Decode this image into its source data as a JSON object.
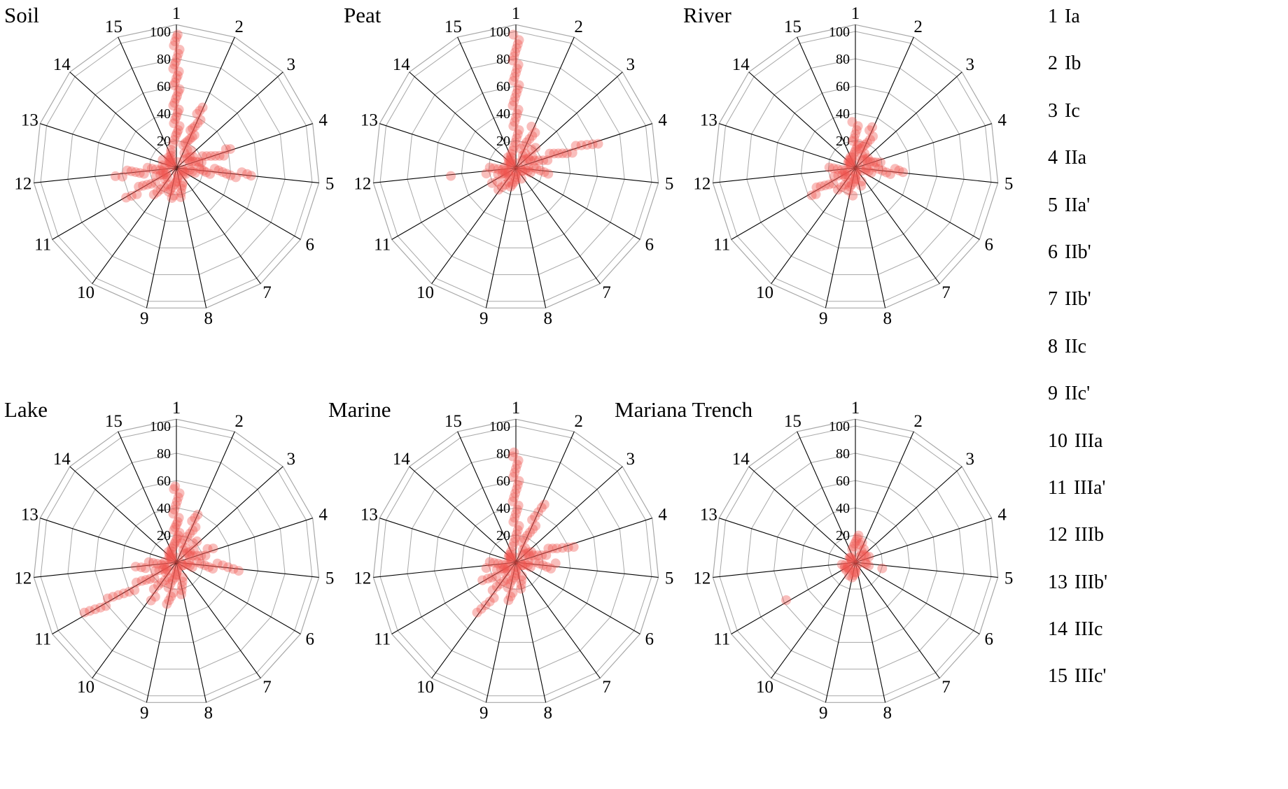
{
  "colors": {
    "point": "#ee544e",
    "spoke": "#000000",
    "ring": "#a8a8a8"
  },
  "legend": {
    "items": [
      {
        "num": "1",
        "label": "Ia"
      },
      {
        "num": "2",
        "label": "Ib"
      },
      {
        "num": "3",
        "label": "Ic"
      },
      {
        "num": "4",
        "label": "IIa"
      },
      {
        "num": "5",
        "label": "IIa'"
      },
      {
        "num": "6",
        "label": "IIb'"
      },
      {
        "num": "7",
        "label": "IIb'"
      },
      {
        "num": "8",
        "label": "IIc"
      },
      {
        "num": "9",
        "label": "IIc'"
      },
      {
        "num": "10",
        "label": "IIIa"
      },
      {
        "num": "11",
        "label": "IIIa'"
      },
      {
        "num": "12",
        "label": "IIIb"
      },
      {
        "num": "13",
        "label": "IIIb'"
      },
      {
        "num": "14",
        "label": "IIIc"
      },
      {
        "num": "15",
        "label": "IIIc'"
      }
    ]
  },
  "chart_data": [
    {
      "type": "scatter",
      "projection": "polar",
      "title": "Soil",
      "axes": [
        "1",
        "2",
        "3",
        "4",
        "5",
        "6",
        "7",
        "8",
        "9",
        "10",
        "11",
        "12",
        "13",
        "14",
        "15"
      ],
      "r_ticks": [
        20,
        40,
        60,
        80,
        100
      ],
      "r_max": 100,
      "points_by_axis": {
        "1": [
          20,
          23,
          26,
          28,
          30,
          33,
          35,
          38,
          40,
          43,
          45,
          48,
          50,
          53,
          55,
          58,
          60,
          63,
          65,
          68,
          70,
          73,
          75,
          78,
          80,
          83,
          86,
          89,
          92,
          95,
          98,
          100
        ],
        "2": [
          10,
          13,
          15,
          17,
          19,
          21,
          23,
          25,
          27,
          29,
          31,
          34,
          37,
          40,
          43,
          46
        ],
        "3": [
          7,
          9,
          11,
          13,
          15
        ],
        "4": [
          8,
          10,
          12,
          14,
          16,
          18,
          20,
          23,
          26,
          29,
          32,
          35,
          38,
          41
        ],
        "5": [
          10,
          12,
          14,
          16,
          18,
          20,
          22,
          25,
          28,
          31,
          34,
          37,
          40,
          44,
          48,
          52,
          55
        ],
        "6": [
          5,
          7,
          9
        ],
        "7": [
          4,
          6,
          8
        ],
        "8": [
          8,
          10,
          12,
          14,
          16,
          18,
          21,
          24
        ],
        "9": [
          8,
          10,
          12,
          14,
          16,
          18,
          20
        ],
        "10": [
          8,
          10,
          12,
          15,
          18,
          21,
          24
        ],
        "11": [
          8,
          10,
          12,
          15,
          18,
          21,
          24,
          27,
          30,
          34,
          38,
          42
        ],
        "12": [
          8,
          10,
          12,
          15,
          18,
          21,
          24,
          27,
          30,
          33,
          36,
          40,
          45
        ],
        "13": [
          5,
          7,
          9,
          11
        ],
        "14": [
          5,
          7,
          9,
          11,
          13
        ],
        "15": [
          6,
          8,
          10,
          12,
          14,
          16
        ]
      }
    },
    {
      "type": "scatter",
      "projection": "polar",
      "title": "Peat",
      "axes": [
        "1",
        "2",
        "3",
        "4",
        "5",
        "6",
        "7",
        "8",
        "9",
        "10",
        "11",
        "12",
        "13",
        "14",
        "15"
      ],
      "r_ticks": [
        20,
        40,
        60,
        80,
        100
      ],
      "r_max": 100,
      "points_by_axis": {
        "1": [
          15,
          18,
          21,
          24,
          27,
          30,
          33,
          36,
          39,
          42,
          45,
          48,
          51,
          54,
          57,
          60,
          63,
          66,
          69,
          72,
          75,
          78,
          81,
          84,
          87,
          90,
          93,
          96,
          100
        ],
        "2": [
          8,
          10,
          12,
          15,
          18,
          21,
          24,
          27,
          30
        ],
        "3": [
          6,
          8,
          10,
          13,
          16,
          19
        ],
        "4": [
          8,
          11,
          14,
          17,
          20,
          23,
          26,
          29,
          32,
          35,
          38,
          42,
          46,
          50,
          54,
          58,
          62
        ],
        "5": [
          7,
          9,
          11,
          13,
          15,
          18,
          21,
          24
        ],
        "6": [
          4,
          6
        ],
        "7": [
          4,
          6
        ],
        "8": [
          5,
          7,
          9,
          11
        ],
        "9": [
          6,
          8,
          10,
          12
        ],
        "10": [
          6,
          8,
          10,
          13,
          16,
          19
        ],
        "11": [
          6,
          8,
          10,
          13,
          16,
          20
        ],
        "12": [
          6,
          8,
          10,
          13,
          16,
          19,
          22,
          48
        ],
        "13": [
          5,
          7,
          9
        ],
        "14": [
          5,
          7,
          9,
          11
        ],
        "15": [
          5,
          7,
          9,
          11,
          13
        ]
      }
    },
    {
      "type": "scatter",
      "projection": "polar",
      "title": "River",
      "axes": [
        "1",
        "2",
        "3",
        "4",
        "5",
        "6",
        "7",
        "8",
        "9",
        "10",
        "11",
        "12",
        "13",
        "14",
        "15"
      ],
      "r_ticks": [
        20,
        40,
        60,
        80,
        100
      ],
      "r_max": 100,
      "points_by_axis": {
        "1": [
          10,
          12,
          14,
          16,
          18,
          20,
          22,
          24,
          27,
          30,
          33,
          36
        ],
        "2": [
          8,
          10,
          12,
          14,
          16,
          18,
          21,
          24,
          27,
          30
        ],
        "3": [
          6,
          8,
          10
        ],
        "4": [
          7,
          9,
          11,
          13,
          15,
          18
        ],
        "5": [
          8,
          10,
          12,
          14,
          17,
          20,
          23,
          26,
          29,
          32,
          35
        ],
        "6": [
          4,
          6
        ],
        "7": [
          4
        ],
        "8": [
          6,
          8,
          10,
          13,
          16
        ],
        "9": [
          6,
          8,
          10,
          12,
          15,
          18
        ],
        "10": [
          6,
          8,
          10,
          13,
          16,
          19
        ],
        "11": [
          8,
          10,
          13,
          16,
          19,
          22,
          25,
          28,
          31,
          34,
          37
        ],
        "12": [
          6,
          8,
          10,
          13,
          16,
          19
        ],
        "13": [
          5,
          7
        ],
        "14": [
          5,
          7,
          9
        ],
        "15": [
          5,
          7,
          9,
          11
        ]
      }
    },
    {
      "type": "scatter",
      "projection": "polar",
      "title": "Lake",
      "axes": [
        "1",
        "2",
        "3",
        "4",
        "5",
        "6",
        "7",
        "8",
        "9",
        "10",
        "11",
        "12",
        "13",
        "14",
        "15"
      ],
      "r_ticks": [
        20,
        40,
        60,
        80,
        100
      ],
      "r_max": 100,
      "points_by_axis": {
        "1": [
          14,
          16,
          18,
          20,
          22,
          24,
          26,
          28,
          30,
          32,
          35,
          38,
          41,
          44,
          47,
          50,
          53,
          56,
          58
        ],
        "2": [
          8,
          10,
          12,
          15,
          18,
          21,
          24,
          27,
          30,
          33,
          36
        ],
        "3": [
          7,
          9,
          11,
          14,
          17,
          20
        ],
        "4": [
          8,
          10,
          12,
          15,
          18,
          21,
          24,
          28
        ],
        "5": [
          8,
          10,
          12,
          15,
          18,
          21,
          24,
          27,
          30,
          34,
          38,
          42,
          46
        ],
        "6": [
          4,
          6
        ],
        "7": [
          4,
          6
        ],
        "8": [
          7,
          9,
          11,
          14,
          17,
          20,
          23,
          26
        ],
        "9": [
          7,
          9,
          11,
          14,
          17,
          20,
          23,
          26,
          29
        ],
        "10": [
          7,
          9,
          11,
          14,
          17,
          20,
          24,
          28,
          32
        ],
        "11": [
          8,
          10,
          13,
          16,
          19,
          22,
          25,
          28,
          32,
          36,
          40,
          44,
          48,
          52,
          56,
          60,
          64,
          68,
          72,
          76
        ],
        "12": [
          7,
          9,
          11,
          14,
          17,
          20,
          23,
          26,
          30
        ],
        "13": [
          5,
          7,
          9
        ],
        "14": [
          5,
          7,
          9,
          11
        ],
        "15": [
          5,
          7,
          9,
          11,
          13
        ]
      }
    },
    {
      "type": "scatter",
      "projection": "polar",
      "title": "Marine",
      "axes": [
        "1",
        "2",
        "3",
        "4",
        "5",
        "6",
        "7",
        "8",
        "9",
        "10",
        "11",
        "12",
        "13",
        "14",
        "15"
      ],
      "r_ticks": [
        20,
        40,
        60,
        80,
        100
      ],
      "r_max": 100,
      "points_by_axis": {
        "1": [
          14,
          17,
          20,
          23,
          26,
          29,
          32,
          35,
          38,
          41,
          44,
          47,
          50,
          53,
          56,
          59,
          62,
          65,
          68,
          71,
          74,
          77,
          80,
          83
        ],
        "2": [
          8,
          10,
          13,
          16,
          19,
          22,
          25,
          28,
          31,
          34,
          38,
          42,
          45
        ],
        "3": [
          6,
          8,
          10,
          12
        ],
        "4": [
          8,
          10,
          13,
          16,
          19,
          22,
          25,
          28,
          31,
          35,
          39,
          43
        ],
        "5": [
          7,
          9,
          11,
          14,
          17,
          20,
          23,
          26,
          29
        ],
        "6": [
          4,
          6
        ],
        "7": [
          4,
          6
        ],
        "8": [
          6,
          8,
          10,
          13,
          16,
          19,
          22
        ],
        "9": [
          7,
          9,
          11,
          14,
          17,
          20,
          23,
          26
        ],
        "10": [
          7,
          9,
          12,
          15,
          18,
          21,
          25,
          29,
          33,
          37,
          41,
          45
        ],
        "11": [
          7,
          9,
          11,
          14,
          17,
          20,
          23,
          27
        ],
        "12": [
          6,
          8,
          10,
          13,
          16,
          19,
          22
        ],
        "13": [
          5,
          7
        ],
        "14": [
          5,
          7,
          9
        ],
        "15": [
          5,
          7,
          9,
          11
        ]
      }
    },
    {
      "type": "scatter",
      "projection": "polar",
      "title": "Mariana Trench",
      "axes": [
        "1",
        "2",
        "3",
        "4",
        "5",
        "6",
        "7",
        "8",
        "9",
        "10",
        "11",
        "12",
        "13",
        "14",
        "15"
      ],
      "r_ticks": [
        20,
        40,
        60,
        80,
        100
      ],
      "r_max": 100,
      "points_by_axis": {
        "1": [
          12,
          14,
          16,
          18,
          20,
          22
        ],
        "2": [
          7,
          9,
          11,
          13
        ],
        "3": [
          5,
          7
        ],
        "4": [
          6,
          8,
          10
        ],
        "5": [
          8,
          10,
          20
        ],
        "6": [
          4
        ],
        "7": [],
        "8": [
          5,
          7,
          9
        ],
        "9": [
          5,
          7,
          9
        ],
        "10": [
          5,
          7,
          9
        ],
        "11": [
          6,
          8,
          57
        ],
        "12": [
          6,
          8,
          10
        ],
        "13": [
          4,
          6
        ],
        "14": [
          4,
          6
        ],
        "15": [
          5,
          7
        ]
      }
    }
  ]
}
